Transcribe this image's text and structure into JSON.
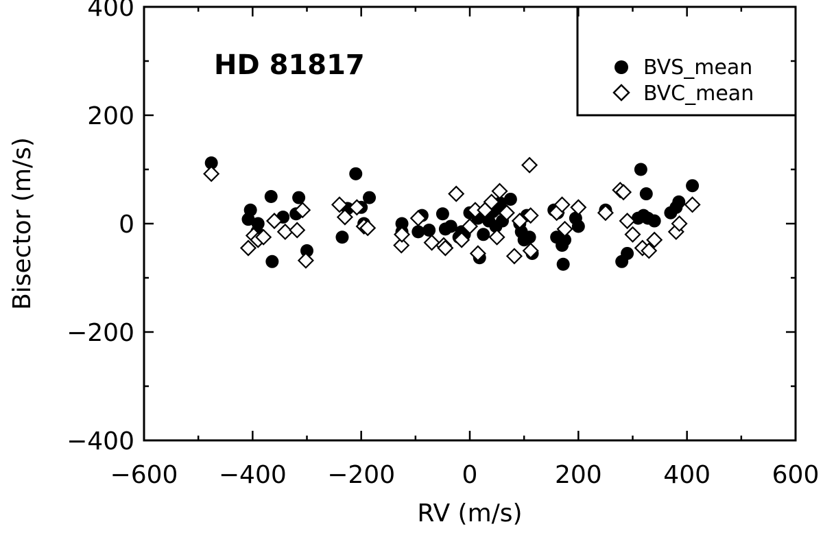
{
  "chart_data": {
    "type": "scatter",
    "title": "",
    "annotation": "HD 81817",
    "xlabel": "RV (m/s)",
    "ylabel": "Bisector (m/s)",
    "xlim": [
      -600,
      600
    ],
    "ylim": [
      -400,
      400
    ],
    "xticks": [
      -600,
      -400,
      -200,
      0,
      200,
      400,
      600
    ],
    "yticks": [
      -400,
      -200,
      0,
      200,
      400
    ],
    "tick_labels_x": [
      "−600",
      "−400",
      "−200",
      "0",
      "200",
      "400",
      "600"
    ],
    "tick_labels_y": [
      "−400",
      "−200",
      "0",
      "200",
      "400"
    ],
    "grid": false,
    "legend_position": "top-right",
    "series": [
      {
        "name": "BVS_mean",
        "marker": "filled-circle",
        "color": "#000000",
        "x": [
          -476,
          -408,
          -404,
          -392,
          -390,
          -366,
          -364,
          -344,
          -320,
          -315,
          -300,
          -235,
          -225,
          -210,
          -200,
          -195,
          -185,
          -125,
          -125,
          -95,
          -88,
          -75,
          -50,
          -45,
          -35,
          -20,
          -15,
          -10,
          0,
          15,
          18,
          25,
          30,
          35,
          42,
          48,
          52,
          56,
          60,
          75,
          92,
          95,
          100,
          105,
          110,
          115,
          155,
          160,
          162,
          170,
          172,
          175,
          195,
          200,
          250,
          280,
          290,
          310,
          315,
          320,
          325,
          328,
          340,
          370,
          380,
          385,
          410
        ],
        "y": [
          112,
          8,
          25,
          -15,
          0,
          50,
          -70,
          12,
          18,
          48,
          -50,
          -25,
          28,
          92,
          30,
          0,
          48,
          0,
          -15,
          -15,
          15,
          -12,
          18,
          -10,
          -5,
          -25,
          -15,
          -20,
          20,
          10,
          -63,
          -20,
          15,
          5,
          22,
          -5,
          28,
          38,
          5,
          45,
          0,
          -15,
          -30,
          15,
          -25,
          -55,
          25,
          -25,
          20,
          -40,
          -75,
          -30,
          10,
          -5,
          25,
          -70,
          -55,
          10,
          100,
          15,
          55,
          10,
          5,
          20,
          30,
          40,
          70
        ]
      },
      {
        "name": "BVC_mean",
        "marker": "open-diamond",
        "color": "#000000",
        "x": [
          -476,
          -408,
          -398,
          -390,
          -380,
          -360,
          -340,
          -318,
          -308,
          -302,
          -240,
          -230,
          -208,
          -195,
          -188,
          -126,
          -125,
          -95,
          -70,
          -48,
          -45,
          -25,
          -15,
          0,
          10,
          15,
          28,
          40,
          50,
          55,
          68,
          82,
          92,
          110,
          112,
          112,
          160,
          170,
          175,
          200,
          250,
          277,
          283,
          290,
          300,
          318,
          330,
          340,
          380,
          386,
          410
        ],
        "y": [
          92,
          -45,
          -22,
          -30,
          -25,
          5,
          -15,
          -12,
          25,
          -68,
          35,
          12,
          30,
          -5,
          -8,
          -40,
          -20,
          10,
          -35,
          -40,
          -45,
          55,
          -30,
          -5,
          25,
          -55,
          25,
          40,
          -25,
          60,
          20,
          -60,
          5,
          108,
          15,
          -50,
          20,
          35,
          -10,
          30,
          20,
          62,
          58,
          5,
          -20,
          -45,
          -50,
          -30,
          -15,
          0,
          35
        ]
      }
    ]
  }
}
